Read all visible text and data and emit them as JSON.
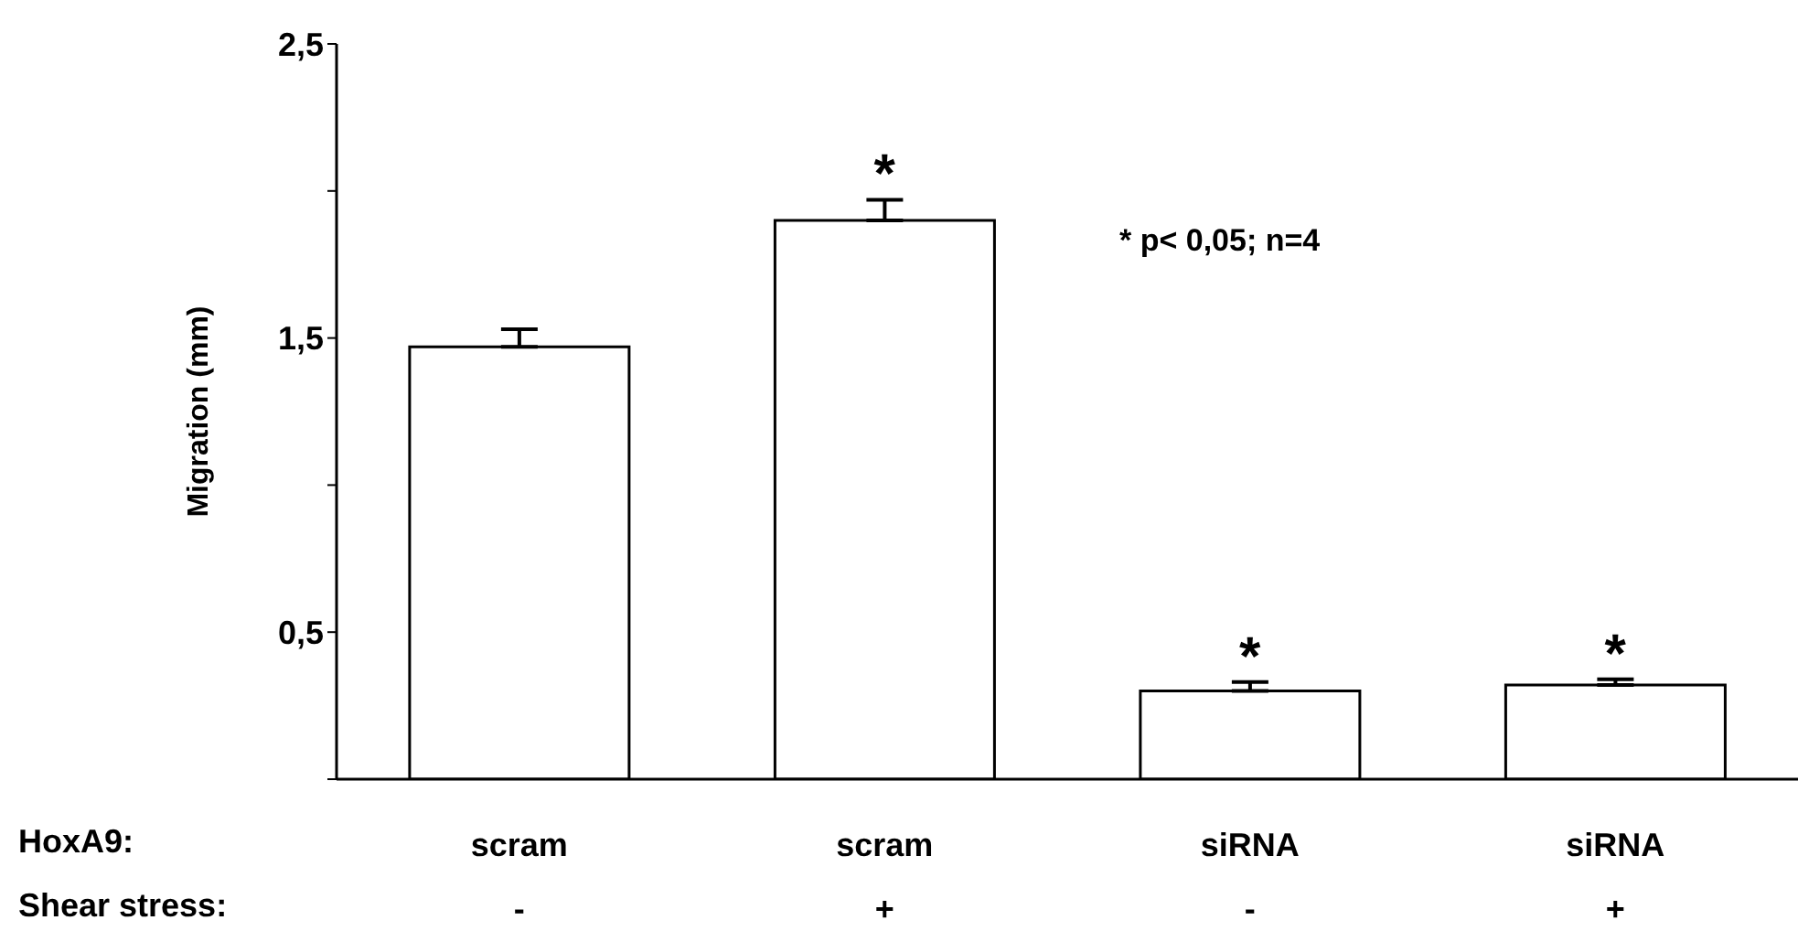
{
  "chart_data": {
    "type": "bar",
    "ylabel": "Migration (mm)",
    "categories": [
      "scram\n-",
      "scram\n+",
      "siRNA\n-",
      "siRNA\n+"
    ],
    "values": [
      1.47,
      1.9,
      0.3,
      0.32
    ],
    "errors": [
      [
        1.47,
        1.53
      ],
      [
        1.9,
        1.97
      ],
      [
        0.3,
        0.33
      ],
      [
        0.32,
        0.34
      ]
    ],
    "color": "#ffffff",
    "ylim": [
      0,
      2.5
    ],
    "yticks": [
      {
        "value": 0,
        "label": null
      },
      "0,5",
      {
        "value": 1,
        "label": null
      },
      {
        "value": 1.5,
        "label": "1,5"
      },
      {
        "value": 2,
        "label": null
      },
      {
        "value": 2.5,
        "label": "2,5"
      }
    ],
    "grid": false,
    "legend": false,
    "annotations": [
      "HoxA9:",
      "Shear stress:",
      "* p< 0,05; n=4",
      {
        "text": "*",
        "x": "scram\n+",
        "y": 1.97
      },
      {
        "text": "*",
        "x": "siRNA\n-",
        "y": 0.33
      },
      {
        "text": "*",
        "x": "siRNA\n+",
        "y": 0.34
      }
    ]
  }
}
